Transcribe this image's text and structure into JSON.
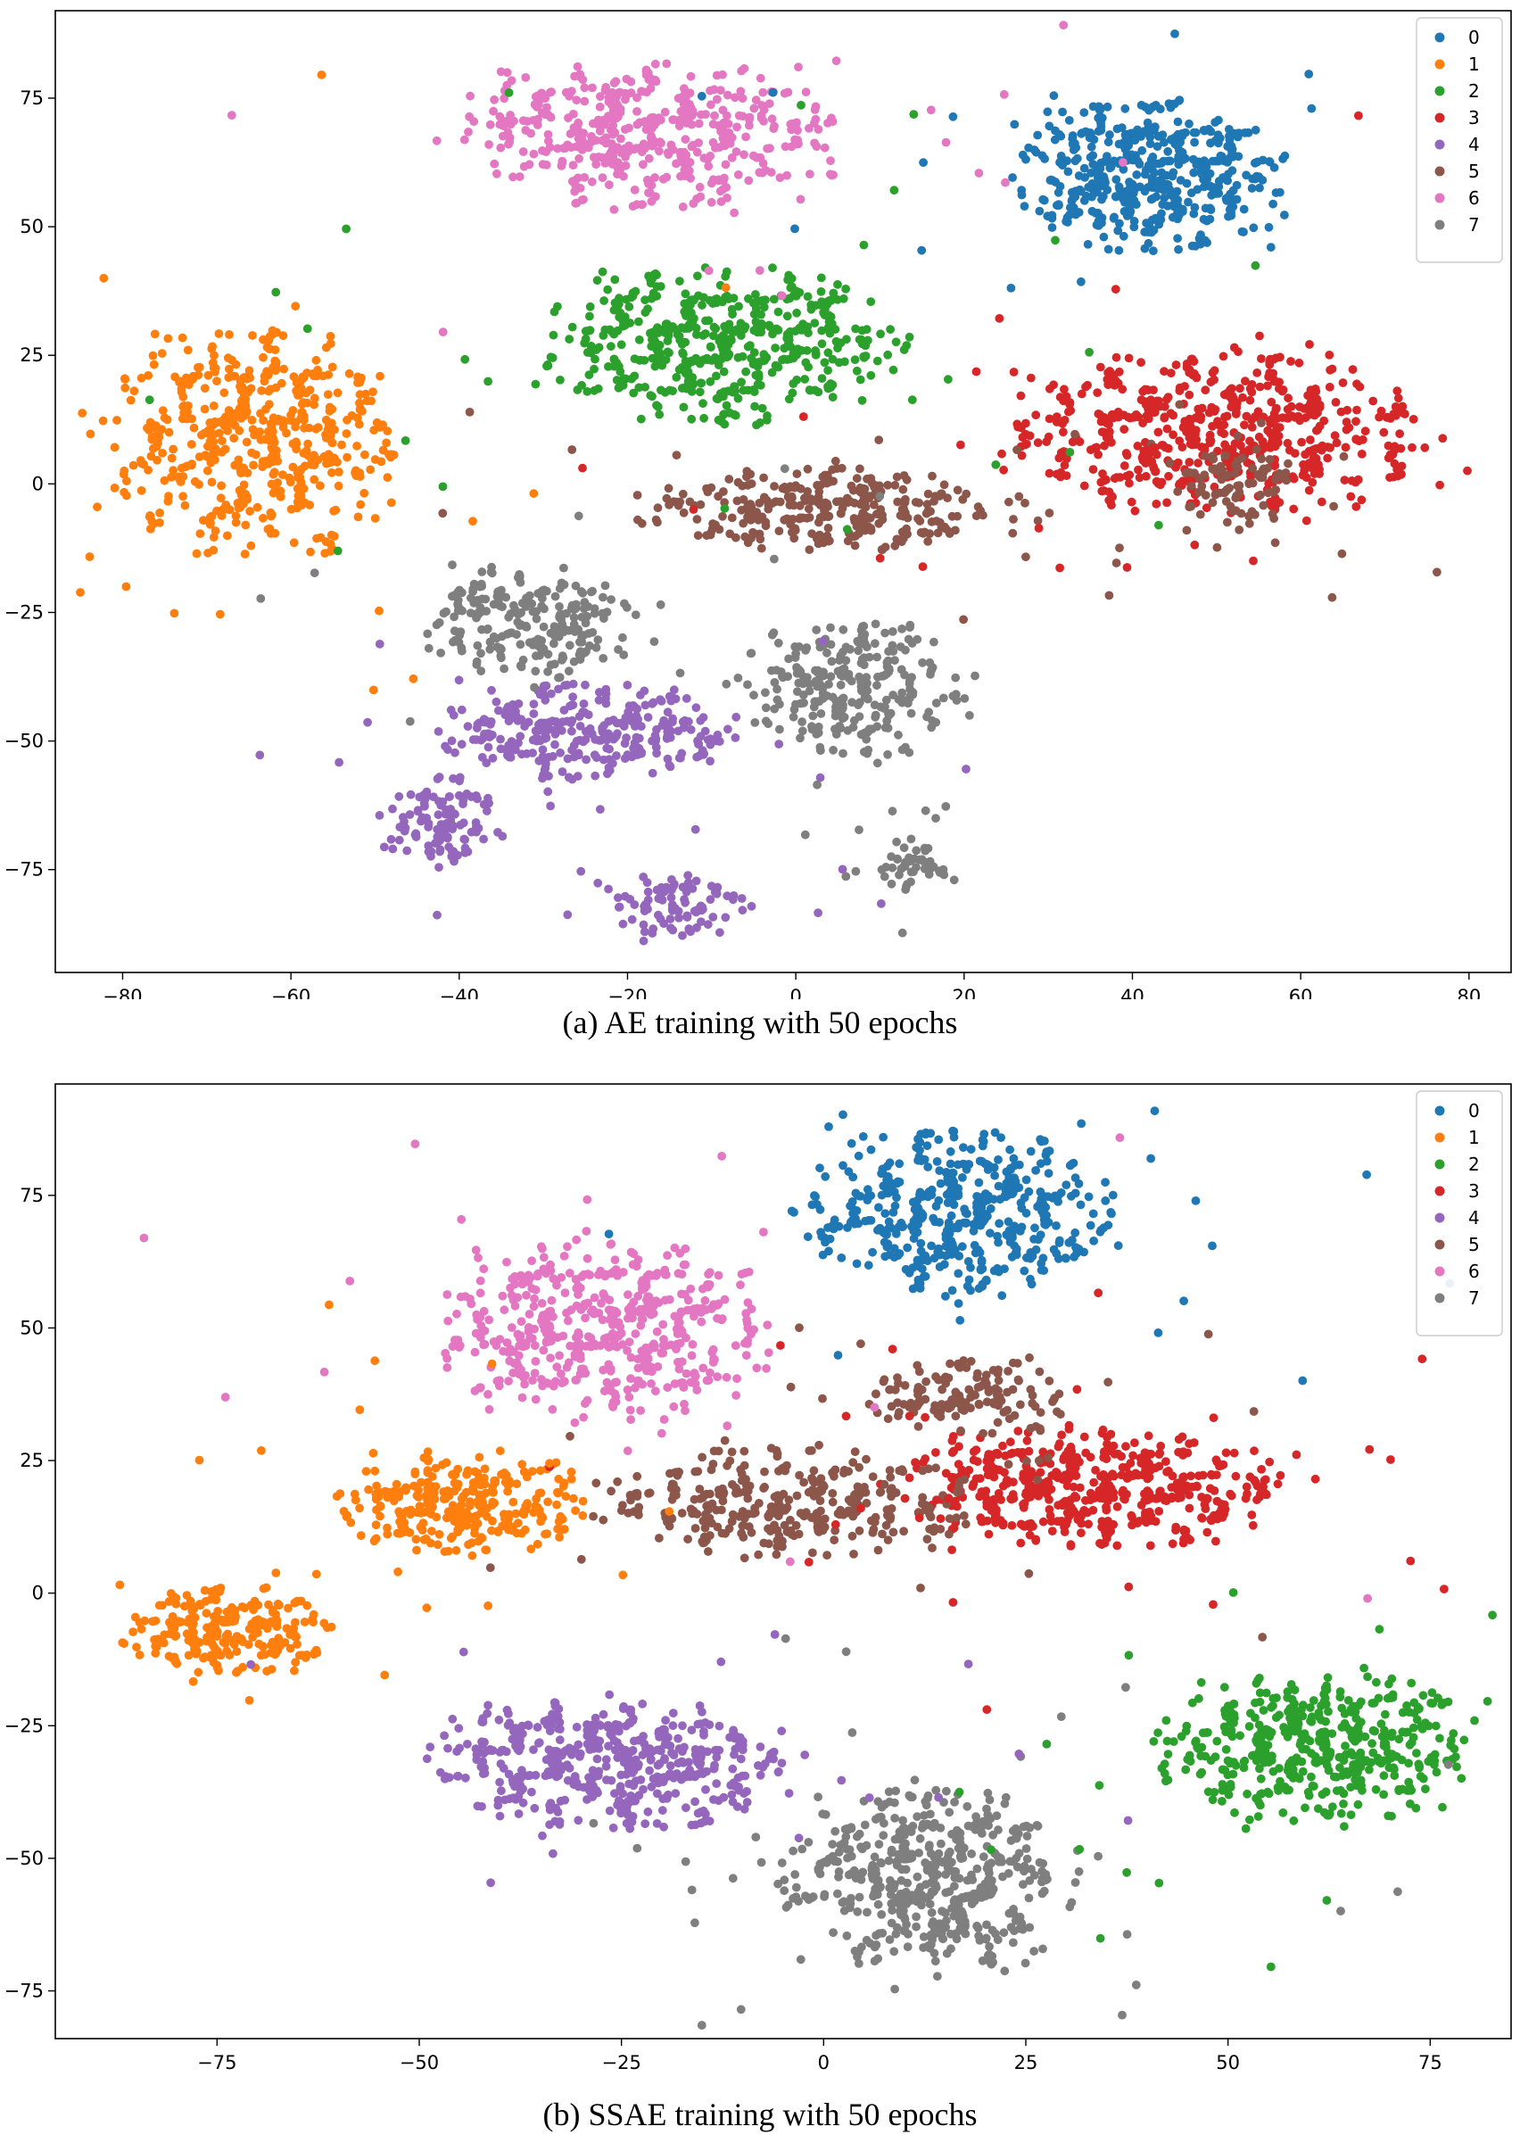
{
  "chart_data": [
    {
      "type": "scatter",
      "title": "",
      "caption": "(a) AE training with 50 epochs",
      "xlabel": "",
      "ylabel": "",
      "xlim": [
        -88,
        85
      ],
      "ylim": [
        -95,
        92
      ],
      "xticks": [
        -80,
        -60,
        -40,
        -20,
        0,
        20,
        40,
        60,
        80
      ],
      "yticks": [
        -75,
        -50,
        -25,
        0,
        25,
        50,
        75
      ],
      "legend_position": "top-right",
      "series": [
        {
          "name": "0",
          "color": "#1f77b4",
          "clusters": [
            {
              "cx": 42,
              "cy": 60,
              "rx": 15,
              "ry": 14,
              "n": 520
            }
          ]
        },
        {
          "name": "1",
          "color": "#ff7f0e",
          "clusters": [
            {
              "cx": -64,
              "cy": 8,
              "rx": 17,
              "ry": 22,
              "n": 560
            }
          ]
        },
        {
          "name": "2",
          "color": "#2ca02c",
          "clusters": [
            {
              "cx": -8,
              "cy": 27,
              "rx": 20,
              "ry": 15,
              "n": 520
            }
          ]
        },
        {
          "name": "3",
          "color": "#d62728",
          "clusters": [
            {
              "cx": 50,
              "cy": 10,
              "rx": 24,
              "ry": 15,
              "n": 620
            }
          ]
        },
        {
          "name": "4",
          "color": "#9467bd",
          "clusters": [
            {
              "cx": -25,
              "cy": -48,
              "rx": 18,
              "ry": 9,
              "n": 320
            },
            {
              "cx": -42,
              "cy": -66,
              "rx": 7,
              "ry": 9,
              "n": 110
            },
            {
              "cx": -14,
              "cy": -82,
              "rx": 8,
              "ry": 6,
              "n": 90
            }
          ]
        },
        {
          "name": "5",
          "color": "#8c564b",
          "clusters": [
            {
              "cx": 5,
              "cy": -5,
              "rx": 22,
              "ry": 8,
              "n": 320
            },
            {
              "cx": 52,
              "cy": 0,
              "rx": 7,
              "ry": 9,
              "n": 90
            }
          ]
        },
        {
          "name": "6",
          "color": "#e377c2",
          "clusters": [
            {
              "cx": -17,
              "cy": 68,
              "rx": 21,
              "ry": 14,
              "n": 500
            }
          ]
        },
        {
          "name": "7",
          "color": "#7f7f7f",
          "clusters": [
            {
              "cx": -32,
              "cy": -27,
              "rx": 12,
              "ry": 11,
              "n": 240
            },
            {
              "cx": 7,
              "cy": -40,
              "rx": 13,
              "ry": 13,
              "n": 280
            },
            {
              "cx": 14,
              "cy": -74,
              "rx": 4,
              "ry": 5,
              "n": 40
            }
          ]
        }
      ]
    },
    {
      "type": "scatter",
      "title": "",
      "caption": "(b) SSAE training with 50 epochs",
      "xlabel": "",
      "ylabel": "",
      "xlim": [
        -95,
        85
      ],
      "ylim": [
        -84,
        96
      ],
      "xticks": [
        -75,
        -50,
        -25,
        0,
        25,
        50,
        75
      ],
      "yticks": [
        -75,
        -50,
        -25,
        0,
        25,
        50,
        75
      ],
      "legend_position": "top-right",
      "series": [
        {
          "name": "0",
          "color": "#1f77b4",
          "clusters": [
            {
              "cx": 17,
              "cy": 72,
              "rx": 19,
              "ry": 15,
              "n": 520
            }
          ]
        },
        {
          "name": "1",
          "color": "#ff7f0e",
          "clusters": [
            {
              "cx": -45,
              "cy": 17,
              "rx": 16,
              "ry": 10,
              "n": 320
            },
            {
              "cx": -74,
              "cy": -7,
              "rx": 12,
              "ry": 8,
              "n": 260
            }
          ]
        },
        {
          "name": "2",
          "color": "#2ca02c",
          "clusters": [
            {
              "cx": 61,
              "cy": -29,
              "rx": 19,
              "ry": 14,
              "n": 480
            }
          ]
        },
        {
          "name": "3",
          "color": "#d62728",
          "clusters": [
            {
              "cx": 33,
              "cy": 20,
              "rx": 23,
              "ry": 11,
              "n": 560
            }
          ]
        },
        {
          "name": "4",
          "color": "#9467bd",
          "clusters": [
            {
              "cx": -26,
              "cy": -32,
              "rx": 22,
              "ry": 12,
              "n": 520
            }
          ]
        },
        {
          "name": "5",
          "color": "#8c564b",
          "clusters": [
            {
              "cx": -4,
              "cy": 17,
              "rx": 22,
              "ry": 10,
              "n": 360
            },
            {
              "cx": 18,
              "cy": 37,
              "rx": 12,
              "ry": 7,
              "n": 140
            }
          ]
        },
        {
          "name": "6",
          "color": "#e377c2",
          "clusters": [
            {
              "cx": -27,
              "cy": 50,
              "rx": 20,
              "ry": 17,
              "n": 520
            }
          ]
        },
        {
          "name": "7",
          "color": "#7f7f7f",
          "clusters": [
            {
              "cx": 13,
              "cy": -54,
              "rx": 17,
              "ry": 17,
              "n": 540
            }
          ]
        }
      ]
    }
  ]
}
